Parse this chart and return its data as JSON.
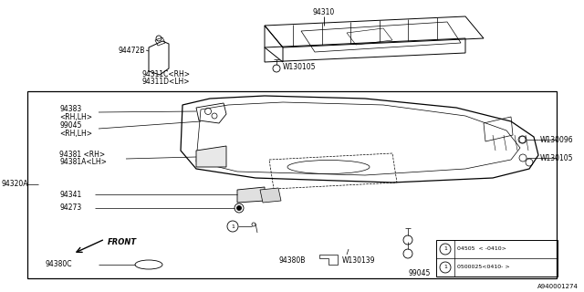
{
  "bg_color": "#ffffff",
  "line_color": "#000000",
  "fig_width": 6.4,
  "fig_height": 3.2,
  "dpi": 100,
  "watermark": "A940001274",
  "legend_row1": "04505  < -0410>",
  "legend_row2": "0500025<0410- >"
}
